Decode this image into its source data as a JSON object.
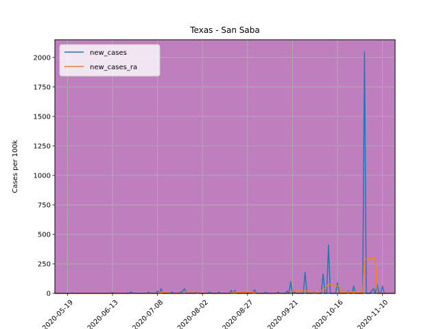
{
  "chart_data": {
    "type": "line",
    "title": "Texas - San Saba",
    "xlabel": "",
    "ylabel": "Cases per 100k",
    "background_color": "#bf7fbf",
    "grid": true,
    "legend_position": "top-left",
    "xlim": [
      "2020-05-12",
      "2020-11-17"
    ],
    "ylim": [
      0,
      2150
    ],
    "x_ticks": [
      "2020-05-19",
      "2020-06-13",
      "2020-07-08",
      "2020-08-02",
      "2020-08-27",
      "2020-09-21",
      "2020-10-16",
      "2020-11-10"
    ],
    "x_tick_labels": [
      "2020-05-19",
      "2020-06-13",
      "2020-07-08",
      "2020-08-02",
      "2020-08-27",
      "2020-09-21",
      "2020-10-16",
      "2020-11-10"
    ],
    "y_ticks": [
      0,
      250,
      500,
      750,
      1000,
      1250,
      1500,
      1750,
      2000
    ],
    "y_tick_labels": [
      "0",
      "250",
      "500",
      "750",
      "1000",
      "1250",
      "1500",
      "1750",
      "2000"
    ],
    "series": [
      {
        "name": "new_cases",
        "color": "#1f77b4",
        "points": [
          [
            "2020-05-12",
            0
          ],
          [
            "2020-05-20",
            0
          ],
          [
            "2020-05-22",
            3
          ],
          [
            "2020-05-24",
            0
          ],
          [
            "2020-06-10",
            0
          ],
          [
            "2020-06-13",
            5
          ],
          [
            "2020-06-15",
            0
          ],
          [
            "2020-06-22",
            0
          ],
          [
            "2020-06-23",
            10
          ],
          [
            "2020-06-25",
            0
          ],
          [
            "2020-07-02",
            0
          ],
          [
            "2020-07-03",
            10
          ],
          [
            "2020-07-04",
            0
          ],
          [
            "2020-07-07",
            0
          ],
          [
            "2020-07-08",
            20
          ],
          [
            "2020-07-09",
            0
          ],
          [
            "2020-07-10",
            40
          ],
          [
            "2020-07-11",
            0
          ],
          [
            "2020-07-15",
            0
          ],
          [
            "2020-07-16",
            10
          ],
          [
            "2020-07-17",
            0
          ],
          [
            "2020-07-20",
            0
          ],
          [
            "2020-07-21",
            10
          ],
          [
            "2020-07-22",
            20
          ],
          [
            "2020-07-23",
            40
          ],
          [
            "2020-07-24",
            0
          ],
          [
            "2020-07-29",
            0
          ],
          [
            "2020-07-30",
            10
          ],
          [
            "2020-07-31",
            0
          ],
          [
            "2020-08-05",
            0
          ],
          [
            "2020-08-06",
            10
          ],
          [
            "2020-08-07",
            0
          ],
          [
            "2020-08-10",
            0
          ],
          [
            "2020-08-11",
            10
          ],
          [
            "2020-08-12",
            0
          ],
          [
            "2020-08-17",
            0
          ],
          [
            "2020-08-18",
            25
          ],
          [
            "2020-08-19",
            0
          ],
          [
            "2020-08-20",
            25
          ],
          [
            "2020-08-21",
            0
          ],
          [
            "2020-08-29",
            0
          ],
          [
            "2020-08-30",
            10
          ],
          [
            "2020-08-31",
            30
          ],
          [
            "2020-09-01",
            0
          ],
          [
            "2020-09-05",
            0
          ],
          [
            "2020-09-06",
            10
          ],
          [
            "2020-09-07",
            0
          ],
          [
            "2020-09-12",
            0
          ],
          [
            "2020-09-13",
            10
          ],
          [
            "2020-09-14",
            0
          ],
          [
            "2020-09-17",
            0
          ],
          [
            "2020-09-18",
            20
          ],
          [
            "2020-09-19",
            0
          ],
          [
            "2020-09-20",
            100
          ],
          [
            "2020-09-21",
            0
          ],
          [
            "2020-09-22",
            10
          ],
          [
            "2020-09-23",
            0
          ],
          [
            "2020-09-27",
            0
          ],
          [
            "2020-09-28",
            180
          ],
          [
            "2020-09-29",
            0
          ],
          [
            "2020-10-02",
            0
          ],
          [
            "2020-10-03",
            10
          ],
          [
            "2020-10-04",
            0
          ],
          [
            "2020-10-07",
            0
          ],
          [
            "2020-10-08",
            165
          ],
          [
            "2020-10-09",
            0
          ],
          [
            "2020-10-10",
            0
          ],
          [
            "2020-10-11",
            410
          ],
          [
            "2020-10-12",
            0
          ],
          [
            "2020-10-15",
            0
          ],
          [
            "2020-10-16",
            90
          ],
          [
            "2020-10-17",
            0
          ],
          [
            "2020-10-21",
            0
          ],
          [
            "2020-10-22",
            20
          ],
          [
            "2020-10-23",
            0
          ],
          [
            "2020-10-24",
            0
          ],
          [
            "2020-10-25",
            60
          ],
          [
            "2020-10-26",
            0
          ],
          [
            "2020-10-30",
            0
          ],
          [
            "2020-10-31",
            2050
          ],
          [
            "2020-11-01",
            0
          ],
          [
            "2020-11-03",
            0
          ],
          [
            "2020-11-05",
            40
          ],
          [
            "2020-11-06",
            0
          ],
          [
            "2020-11-07",
            80
          ],
          [
            "2020-11-08",
            0
          ],
          [
            "2020-11-09",
            0
          ],
          [
            "2020-11-10",
            60
          ],
          [
            "2020-11-11",
            0
          ],
          [
            "2020-11-17",
            0
          ]
        ]
      },
      {
        "name": "new_cases_ra",
        "color": "#ff7f0e",
        "points": [
          [
            "2020-05-12",
            0
          ],
          [
            "2020-07-08",
            0
          ],
          [
            "2020-07-09",
            10
          ],
          [
            "2020-07-14",
            10
          ],
          [
            "2020-07-15",
            0
          ],
          [
            "2020-07-23",
            0
          ],
          [
            "2020-07-24",
            15
          ],
          [
            "2020-07-30",
            15
          ],
          [
            "2020-07-31",
            0
          ],
          [
            "2020-08-18",
            0
          ],
          [
            "2020-08-19",
            10
          ],
          [
            "2020-08-31",
            10
          ],
          [
            "2020-09-01",
            0
          ],
          [
            "2020-09-20",
            0
          ],
          [
            "2020-09-21",
            20
          ],
          [
            "2020-10-01",
            20
          ],
          [
            "2020-10-03",
            0
          ],
          [
            "2020-10-08",
            25
          ],
          [
            "2020-10-11",
            80
          ],
          [
            "2020-10-17",
            60
          ],
          [
            "2020-10-18",
            10
          ],
          [
            "2020-10-24",
            10
          ],
          [
            "2020-10-30",
            10
          ],
          [
            "2020-10-31",
            290
          ],
          [
            "2020-11-03",
            300
          ],
          [
            "2020-11-06",
            300
          ],
          [
            "2020-11-07",
            0
          ],
          [
            "2020-11-17",
            0
          ]
        ]
      }
    ]
  }
}
